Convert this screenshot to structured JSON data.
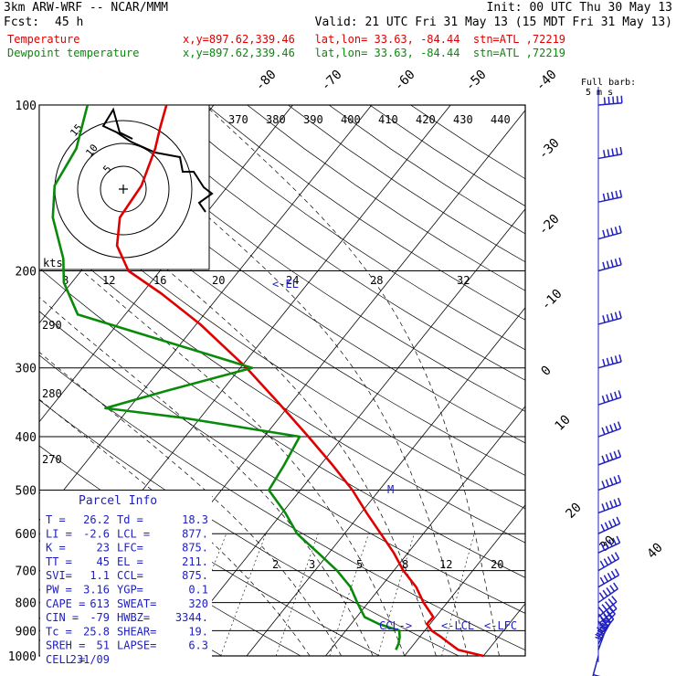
{
  "header": {
    "model": "3km ARW-WRF -- NCAR/MMM",
    "init": "Init: 00 UTC Thu 30 May 13",
    "fcst_label": "Fcst:",
    "fcst_value": "45 h",
    "valid": "Valid: 21 UTC Fri 31 May 13 (15 MDT Fri 31 May 13)",
    "temp_label": "Temperature",
    "temp_info": "x,y=897.62,339.46   lat,lon= 33.63, -84.44  stn=ATL ,72219",
    "dew_label": "Dewpoint temperature",
    "dew_info": "x,y=897.62,339.46   lat,lon= 33.63, -84.44  stn=ATL ,72219"
  },
  "colors": {
    "temperature": "#e00000",
    "dewpoint": "#0a8a0a",
    "wind": "#2020c0",
    "parcel": "#2020c0"
  },
  "chart_data": {
    "type": "line",
    "diagram": "skew-T log-p",
    "pressure_levels": [
      100,
      200,
      300,
      400,
      500,
      600,
      700,
      800,
      900,
      1000
    ],
    "skewed_isotherm_labels": [
      "-80",
      "-70",
      "-60",
      "-50",
      "-40",
      "-30",
      "-20",
      "-10",
      "0",
      "10",
      "20",
      "30",
      "40"
    ],
    "theta_e_labels": [
      "370",
      "380",
      "390",
      "400",
      "410",
      "420",
      "430",
      "440"
    ],
    "theta_labels": [
      "290",
      "280",
      "270"
    ],
    "mixing_ratio_labels_upper": [
      "8",
      "12",
      "16",
      "20",
      "24",
      "28",
      "32"
    ],
    "mixing_ratio_labels_lower": [
      "2",
      "3",
      "5",
      "8",
      "12",
      "20"
    ],
    "hodograph": {
      "units": "kts",
      "ring_labels": [
        "5",
        "10",
        "15"
      ]
    },
    "wind_legend": [
      "Full barb:",
      "5 m s"
    ],
    "series": [
      {
        "name": "Temperature",
        "values": [
          [
            1000,
            30.0
          ],
          [
            975,
            26.2
          ],
          [
            950,
            24.5
          ],
          [
            925,
            22.8
          ],
          [
            900,
            20.9
          ],
          [
            875,
            19.6
          ],
          [
            850,
            19.7
          ],
          [
            800,
            17.0
          ],
          [
            750,
            14.5
          ],
          [
            700,
            11.2
          ],
          [
            650,
            8.2
          ],
          [
            600,
            4.6
          ],
          [
            550,
            0.7
          ],
          [
            500,
            -3.4
          ],
          [
            450,
            -8.5
          ],
          [
            400,
            -14.4
          ],
          [
            350,
            -21.2
          ],
          [
            300,
            -29.2
          ],
          [
            250,
            -39.5
          ],
          [
            220,
            -47.5
          ],
          [
            200,
            -54.0
          ],
          [
            180,
            -58.0
          ],
          [
            160,
            -60.5
          ],
          [
            140,
            -61.0
          ],
          [
            120,
            -63.0
          ],
          [
            110,
            -64.5
          ],
          [
            100,
            -66.0
          ]
        ]
      },
      {
        "name": "Dewpoint temperature",
        "values": [
          [
            975,
            18.3
          ],
          [
            950,
            18.0
          ],
          [
            925,
            17.5
          ],
          [
            900,
            16.8
          ],
          [
            875,
            13.5
          ],
          [
            850,
            11.0
          ],
          [
            800,
            8.6
          ],
          [
            750,
            6.2
          ],
          [
            700,
            2.8
          ],
          [
            650,
            -1.4
          ],
          [
            600,
            -6.0
          ],
          [
            550,
            -9.6
          ],
          [
            500,
            -14.0
          ],
          [
            450,
            -14.6
          ],
          [
            400,
            -15.5
          ],
          [
            370,
            -32.0
          ],
          [
            355,
            -43.0
          ],
          [
            330,
            -37.0
          ],
          [
            300,
            -28.5
          ],
          [
            270,
            -41.5
          ],
          [
            240,
            -56.0
          ],
          [
            210,
            -61.0
          ],
          [
            190,
            -63.5
          ],
          [
            160,
            -69.0
          ],
          [
            140,
            -72.0
          ],
          [
            120,
            -73.0
          ],
          [
            100,
            -76.0
          ]
        ]
      }
    ],
    "level_markers": [
      "<-EL",
      "M",
      "CCL->",
      "<-LCL",
      "<-LFC"
    ],
    "wind_barbs": [
      [
        1000,
        15,
        2
      ],
      [
        975,
        200,
        4
      ],
      [
        950,
        210,
        5
      ],
      [
        925,
        220,
        6
      ],
      [
        900,
        225,
        6
      ],
      [
        875,
        230,
        7
      ],
      [
        850,
        230,
        8
      ],
      [
        800,
        235,
        8
      ],
      [
        750,
        240,
        9
      ],
      [
        700,
        240,
        9
      ],
      [
        650,
        245,
        10
      ],
      [
        600,
        245,
        10
      ],
      [
        550,
        250,
        11
      ],
      [
        500,
        250,
        12
      ],
      [
        450,
        250,
        13
      ],
      [
        400,
        250,
        14
      ],
      [
        350,
        252,
        15
      ],
      [
        300,
        255,
        16
      ],
      [
        250,
        255,
        17
      ],
      [
        200,
        255,
        17
      ],
      [
        175,
        255,
        16
      ],
      [
        150,
        258,
        14
      ],
      [
        125,
        260,
        12
      ],
      [
        100,
        265,
        8
      ]
    ]
  },
  "parcel_info": {
    "title": "Parcel Info",
    "rows": [
      [
        "T  =",
        "26.2",
        "Td =",
        "18.3"
      ],
      [
        "LI =",
        "-2.6",
        "LCL =",
        "877."
      ],
      [
        "K  =",
        "23",
        "LFC=",
        "875."
      ],
      [
        "TT =",
        "45",
        "EL =",
        "211."
      ],
      [
        "SVI=",
        "1.1",
        "CCL=",
        "875."
      ],
      [
        "PW =",
        "3.16",
        "YGP=",
        "0.1"
      ],
      [
        "CAPE =",
        "613",
        "SWEAT=",
        "320"
      ],
      [
        "CIN  =",
        "-79",
        "HWBZ=",
        "3344."
      ],
      [
        "Tc =",
        "25.8",
        "SHEAR=",
        "19."
      ],
      [
        "SREH =",
        "51",
        "LAPSE=",
        "6.3"
      ],
      [
        "CELL =",
        "231/09",
        "",
        ""
      ]
    ]
  }
}
